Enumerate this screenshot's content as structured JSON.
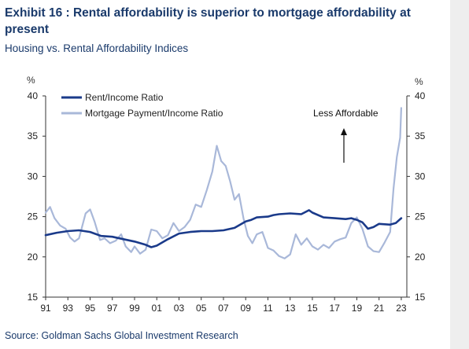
{
  "header": {
    "title": "Exhibit 16 : Rental affordability is superior to mortgage affordability at present",
    "subtitle": "Housing vs. Rental Affordability Indices"
  },
  "footer": {
    "source": "Source: Goldman Sachs Global Investment Research"
  },
  "colors": {
    "rent": "#1a3a8a",
    "mortgage": "#a9b8d9",
    "text": "#1a3a6b",
    "axis": "#333333"
  },
  "chart_data": {
    "type": "line",
    "left_unit": "%",
    "right_unit": "%",
    "ylim": [
      15,
      40
    ],
    "xlim": [
      1991,
      2023.5
    ],
    "y_ticks": [
      15,
      20,
      25,
      30,
      35,
      40
    ],
    "x_ticks": [
      {
        "year": 1991,
        "label": "91"
      },
      {
        "year": 1993,
        "label": "93"
      },
      {
        "year": 1995,
        "label": "95"
      },
      {
        "year": 1997,
        "label": "97"
      },
      {
        "year": 1999,
        "label": "99"
      },
      {
        "year": 2001,
        "label": "01"
      },
      {
        "year": 2003,
        "label": "03"
      },
      {
        "year": 2005,
        "label": "05"
      },
      {
        "year": 2007,
        "label": "07"
      },
      {
        "year": 2009,
        "label": "09"
      },
      {
        "year": 2011,
        "label": "11"
      },
      {
        "year": 2013,
        "label": "13"
      },
      {
        "year": 2015,
        "label": "15"
      },
      {
        "year": 2017,
        "label": "17"
      },
      {
        "year": 2019,
        "label": "19"
      },
      {
        "year": 2021,
        "label": "21"
      },
      {
        "year": 2023,
        "label": "23"
      }
    ],
    "legend_position": "top-left",
    "annotation": "Less Affordable",
    "series": [
      {
        "name": "Rent/Income Ratio",
        "key": "rent",
        "x": [
          1991,
          1992,
          1993,
          1994,
          1995,
          1996,
          1997,
          1998,
          1999,
          2000,
          2000.5,
          2001,
          2002,
          2003,
          2004,
          2005,
          2006,
          2007,
          2008,
          2009,
          2009.5,
          2010,
          2011,
          2011.5,
          2012,
          2013,
          2014,
          2014.7,
          2015,
          2016,
          2017,
          2018,
          2018.5,
          2019,
          2019.5,
          2020,
          2020.5,
          2021,
          2022,
          2022.5,
          2023
        ],
        "y": [
          22.7,
          23.0,
          23.2,
          23.3,
          23.1,
          22.6,
          22.5,
          22.2,
          21.9,
          21.5,
          21.2,
          21.4,
          22.2,
          22.9,
          23.1,
          23.2,
          23.2,
          23.3,
          23.6,
          24.4,
          24.6,
          24.9,
          25.0,
          25.2,
          25.3,
          25.4,
          25.3,
          25.8,
          25.5,
          24.9,
          24.8,
          24.7,
          24.8,
          24.6,
          24.3,
          23.5,
          23.7,
          24.1,
          24.0,
          24.2,
          24.8
        ]
      },
      {
        "name": "Mortgage Payment/Income Ratio",
        "key": "mortgage",
        "x": [
          1991,
          1991.4,
          1991.8,
          1992.3,
          1992.8,
          1993.2,
          1993.6,
          1994,
          1994.6,
          1995,
          1995.4,
          1995.9,
          1996.3,
          1996.8,
          1997.3,
          1997.8,
          1998.2,
          1998.7,
          1999,
          1999.5,
          2000,
          2000.5,
          2001,
          2001.5,
          2002,
          2002.5,
          2003,
          2003.5,
          2004,
          2004.5,
          2005,
          2005.5,
          2006,
          2006.4,
          2006.8,
          2007.2,
          2007.6,
          2008,
          2008.4,
          2008.8,
          2009.2,
          2009.6,
          2010,
          2010.5,
          2011,
          2011.5,
          2012,
          2012.5,
          2013,
          2013.5,
          2014,
          2014.5,
          2015,
          2015.5,
          2016,
          2016.5,
          2017,
          2017.5,
          2018,
          2018.5,
          2019,
          2019.5,
          2020,
          2020.5,
          2021,
          2021.5,
          2022,
          2022.3,
          2022.6,
          2022.9,
          2023
        ],
        "y": [
          25.5,
          26.2,
          24.8,
          23.9,
          23.5,
          22.4,
          21.9,
          22.3,
          25.4,
          25.9,
          24.4,
          22.1,
          22.3,
          21.7,
          22.0,
          22.8,
          21.3,
          20.6,
          21.3,
          20.4,
          20.9,
          23.4,
          23.2,
          22.3,
          22.7,
          24.2,
          23.2,
          23.7,
          24.6,
          26.5,
          26.2,
          28.3,
          30.6,
          33.8,
          31.9,
          31.3,
          29.4,
          27.1,
          27.8,
          24.8,
          22.6,
          21.7,
          22.8,
          23.1,
          21.1,
          20.8,
          20.1,
          19.8,
          20.3,
          22.8,
          21.5,
          22.3,
          21.3,
          20.9,
          21.5,
          21.1,
          21.9,
          22.2,
          22.4,
          24.2,
          24.9,
          23.5,
          21.3,
          20.7,
          20.6,
          21.8,
          23.1,
          28.5,
          32.4,
          34.8,
          38.5
        ]
      }
    ]
  }
}
